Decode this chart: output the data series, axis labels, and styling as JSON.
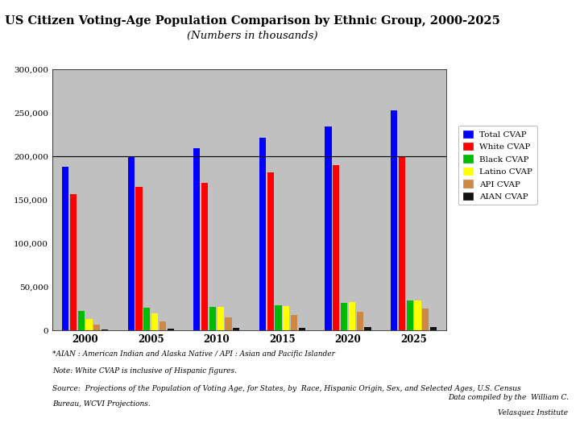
{
  "title": "US Citizen Voting-Age Population Comparison by Ethnic Group, 2000-2025",
  "subtitle": "(Numbers in thousands)",
  "years": [
    2000,
    2005,
    2010,
    2015,
    2020,
    2025
  ],
  "series": {
    "Total CVAP": {
      "values": [
        188000,
        200000,
        210000,
        222000,
        235000,
        253000
      ],
      "color": "#0000FF"
    },
    "White CVAP": {
      "values": [
        157000,
        165000,
        170000,
        182000,
        190000,
        200000
      ],
      "color": "#FF0000"
    },
    "Black CVAP": {
      "values": [
        23000,
        26000,
        27000,
        29000,
        32000,
        35000
      ],
      "color": "#00BB00"
    },
    "Latino CVAP": {
      "values": [
        13000,
        20000,
        27000,
        28000,
        33000,
        35000
      ],
      "color": "#FFFF00"
    },
    "API CVAP": {
      "values": [
        7000,
        11000,
        15000,
        18000,
        22000,
        25000
      ],
      "color": "#CC8844"
    },
    "AIAN CVAP": {
      "values": [
        1500,
        2500,
        3000,
        3500,
        4000,
        4500
      ],
      "color": "#111111"
    }
  },
  "ylim": [
    0,
    300000
  ],
  "yticks": [
    0,
    50000,
    100000,
    150000,
    200000,
    250000,
    300000
  ],
  "ytick_labels": [
    "0",
    "50,000",
    "100,000",
    "150,000",
    "200,000",
    "250,000",
    "300,000"
  ],
  "hline_y": 200000,
  "chart_bg": "#C0C0C0",
  "fig_bg": "#FFFFFF",
  "footnote1": "*AIAN : American Indian and Alaska Native / API : Asian and Pacific Islander",
  "footnote2": "Note: White CVAP is inclusive of Hispanic figures.",
  "footnote3_line1": "Source:  Projections of the Population of Voting Age, for States, by  Race, Hispanic Origin, Sex, and Selected Ages, U.S. Census",
  "footnote3_line2": "Bureau, WCVI Projections.",
  "footnote4_line1": "Data compiled by the  William C.",
  "footnote4_line2": "Velasquez Institute"
}
